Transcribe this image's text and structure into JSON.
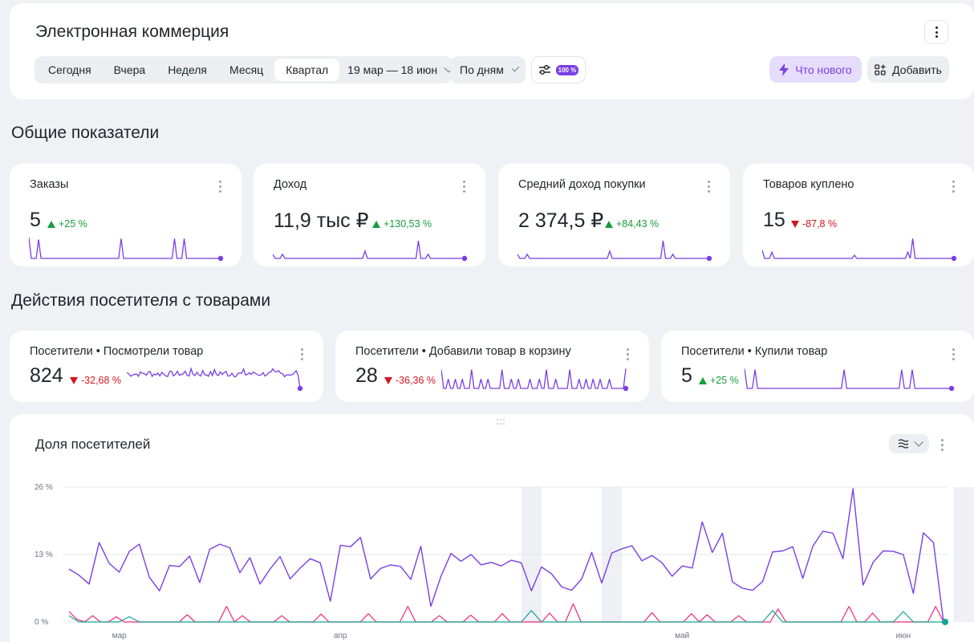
{
  "header": {
    "title": "Электронная коммерция",
    "periods": [
      "Сегодня",
      "Вчера",
      "Неделя",
      "Месяц",
      "Квартал"
    ],
    "active_period": "Квартал",
    "date_range": "19 мар — 18 июн",
    "grouping": "По дням",
    "sampling_badge": "100 %",
    "whats_new": "Что нового",
    "add": "Добавить"
  },
  "sections": {
    "general": "Общие показатели",
    "actions": "Действия посетителя с товарами"
  },
  "metrics": [
    {
      "title": "Заказы",
      "value": "5",
      "delta": "+25 %",
      "trend": "up"
    },
    {
      "title": "Доход",
      "value": "11,9 тыс ₽",
      "delta": "+130,53 %",
      "trend": "up"
    },
    {
      "title": "Средний доход покупки",
      "value": "2 374,5 ₽",
      "delta": "+84,43 %",
      "trend": "up"
    },
    {
      "title": "Товаров куплено",
      "value": "15",
      "delta": "-87,8 %",
      "trend": "down"
    }
  ],
  "actions": [
    {
      "title": "Посетители • Посмотрели товар",
      "value": "824",
      "delta": "-32,68 %",
      "trend": "down"
    },
    {
      "title": "Посетители • Добавили товар в корзину",
      "value": "28",
      "delta": "-36,36 %",
      "trend": "down"
    },
    {
      "title": "Посетители • Купили товар",
      "value": "5",
      "delta": "+25 %",
      "trend": "up"
    }
  ],
  "colors": {
    "accent": "#7b3fe4",
    "up": "#169e3c",
    "down": "#d4161f",
    "pink": "#f0287a",
    "teal": "#14a394"
  },
  "chart": {
    "title": "Доля посетителей"
  },
  "chart_data": {
    "type": "line",
    "y_ticks": [
      "0 %",
      "13 %",
      "26 %"
    ],
    "ylim": [
      0,
      26
    ],
    "x_tick_labels": [
      "мар",
      "апр",
      "май",
      "июн"
    ],
    "x_tick_index": [
      5,
      27,
      61,
      83
    ],
    "shaded_index_ranges": [
      [
        45,
        47
      ],
      [
        53,
        55
      ],
      [
        88,
        90
      ]
    ],
    "series": [
      {
        "color": "#7b3fe4",
        "values": [
          10.2,
          9,
          7.3,
          15.3,
          11.3,
          9.6,
          13.6,
          15,
          8.6,
          6,
          10.9,
          10.7,
          12.7,
          7.6,
          14,
          15,
          14.3,
          9.5,
          12.4,
          7.3,
          10.2,
          12.6,
          8.3,
          10.4,
          12.2,
          11.4,
          4,
          14.8,
          14.5,
          16.3,
          8.3,
          10.3,
          11,
          10.7,
          8.2,
          14.6,
          3,
          8.8,
          13.2,
          11.7,
          13,
          11,
          11.5,
          10.8,
          11.9,
          11.4,
          6,
          10.6,
          9.3,
          6.8,
          6.1,
          8.3,
          13.4,
          7.5,
          13.3,
          14.1,
          14.7,
          11.8,
          12.8,
          11.4,
          8.8,
          10.8,
          10.4,
          19.3,
          13.4,
          17.1,
          7.7,
          6.5,
          6.1,
          7.8,
          13.5,
          13.7,
          14.5,
          8.4,
          14.6,
          17.5,
          17.1,
          12.2,
          25.7,
          7.1,
          11.5,
          13.7,
          13.6,
          13,
          5.5,
          17.2,
          15.3,
          0
        ]
      },
      {
        "color": "#f0287a",
        "values": [
          2,
          0.5,
          0,
          1.2,
          0,
          0,
          1,
          0,
          0,
          0,
          0,
          0,
          0,
          0,
          0,
          1.4,
          0,
          0,
          0,
          0,
          3,
          0,
          1.2,
          0,
          0,
          0,
          0,
          1.2,
          0,
          0,
          0,
          0,
          1.5,
          0,
          0,
          0,
          0,
          0,
          1.6,
          0,
          0,
          0,
          0,
          3,
          0,
          0,
          0,
          1.2,
          0,
          0,
          0,
          1.3,
          0,
          0,
          0,
          1.6,
          0,
          0,
          0,
          0,
          0,
          1.7,
          0,
          0,
          3.5,
          0,
          0,
          0,
          0,
          0,
          0,
          0,
          0,
          0,
          1.8,
          0,
          0,
          0,
          0,
          1.6,
          0,
          1.4,
          0,
          0,
          0,
          1.2,
          0,
          0,
          0,
          0,
          2.5,
          0,
          0,
          0,
          0,
          0,
          0,
          0,
          0,
          3,
          0,
          0,
          1.7,
          0,
          0,
          0,
          0,
          0,
          0,
          0,
          3,
          0
        ]
      },
      {
        "color": "#14a394",
        "values": [
          1.2,
          0,
          0,
          0,
          0,
          0,
          1,
          0,
          0,
          0,
          0,
          0,
          0,
          0,
          0,
          0,
          0,
          0,
          0,
          0,
          0,
          0,
          0,
          0,
          0,
          0,
          0,
          0,
          0,
          0,
          0,
          0,
          0,
          0,
          0,
          0,
          0,
          0,
          0,
          0,
          0,
          0,
          0,
          0,
          0,
          0,
          2.2,
          0,
          0,
          0,
          0,
          0,
          0,
          0,
          0,
          0,
          0,
          0,
          0,
          0,
          0,
          0,
          0,
          0,
          0,
          0,
          0,
          0,
          0,
          0,
          2.2,
          0,
          0,
          0,
          0,
          0,
          0,
          0,
          0,
          0,
          0,
          0,
          0,
          2,
          0,
          0,
          0,
          0
        ]
      }
    ]
  }
}
